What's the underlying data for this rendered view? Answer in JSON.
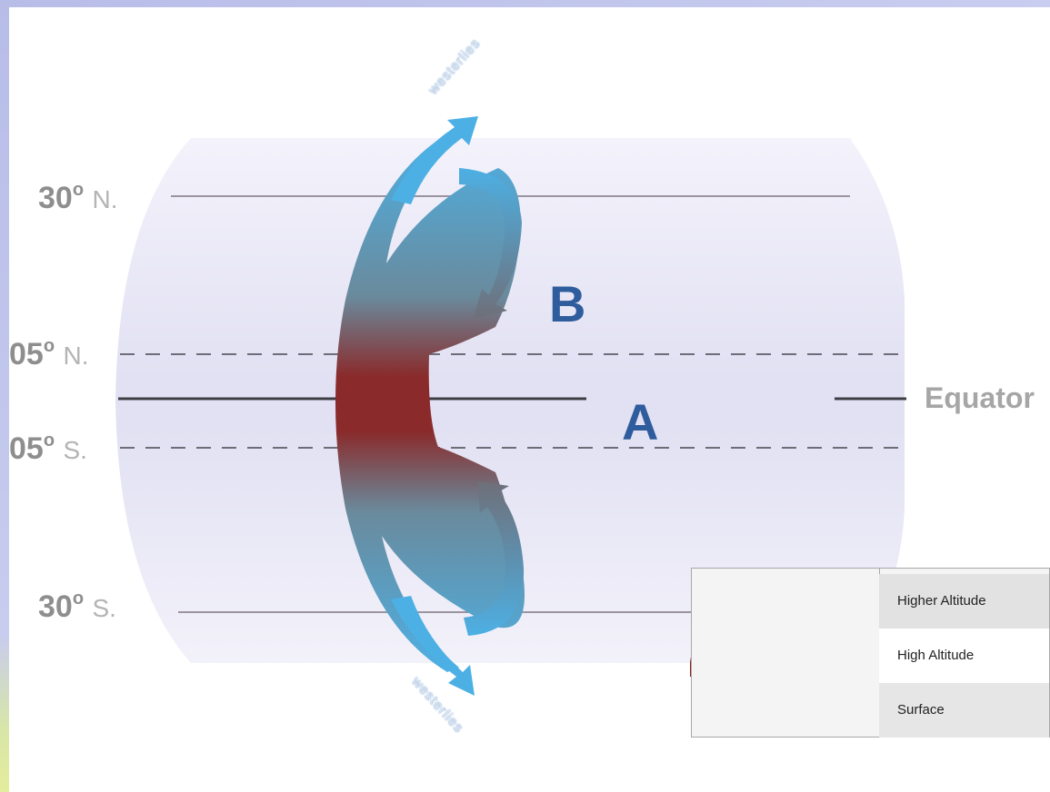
{
  "latitudes": {
    "n30": {
      "value": "30",
      "suffix": "N."
    },
    "n05": {
      "value": "05",
      "suffix": "N."
    },
    "s05": {
      "value": "05",
      "suffix": "S."
    },
    "s30": {
      "value": "30",
      "suffix": "S."
    },
    "degree_symbol": "o"
  },
  "equator_label": "Equator",
  "markers": {
    "a": "A",
    "b": "B"
  },
  "upper_arrow_word": "westerlies",
  "lower_arrow_word": "westerlies",
  "legend": {
    "rows": [
      "Higher Altitude",
      "High Altitude",
      "Surface"
    ]
  },
  "colors": {
    "warm": "#8f1f1f",
    "cool": "#4aaee0",
    "surface": "#7a7a7a",
    "letters": "#2e5c9c"
  }
}
